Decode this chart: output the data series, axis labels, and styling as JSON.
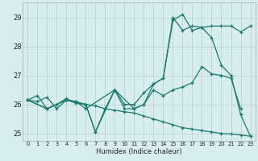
{
  "xlabel": "Humidex (Indice chaleur)",
  "background_color": "#d8eeee",
  "grid_color": "#c0d8d8",
  "line_color": "#1a7a6e",
  "xlim": [
    -0.5,
    23.5
  ],
  "ylim": [
    24.75,
    29.5
  ],
  "yticks": [
    25,
    26,
    27,
    28,
    29
  ],
  "xticks": [
    0,
    1,
    2,
    3,
    4,
    5,
    6,
    7,
    8,
    9,
    10,
    11,
    12,
    13,
    14,
    15,
    16,
    17,
    18,
    19,
    20,
    21,
    22,
    23
  ],
  "series": [
    {
      "x": [
        0,
        1,
        2,
        3,
        4,
        5,
        6,
        7,
        8,
        9,
        10,
        11,
        12,
        13,
        14,
        15,
        16,
        17,
        18,
        19,
        20,
        21,
        22,
        23
      ],
      "y": [
        26.15,
        26.1,
        26.25,
        25.85,
        26.15,
        26.05,
        26.0,
        25.95,
        25.85,
        25.8,
        25.75,
        25.7,
        25.6,
        25.5,
        25.4,
        25.3,
        25.2,
        25.15,
        25.1,
        25.05,
        25.0,
        24.98,
        24.95,
        24.9
      ]
    },
    {
      "x": [
        0,
        1,
        2,
        3,
        4,
        5,
        6,
        7,
        8,
        9,
        10,
        11,
        12,
        13,
        14,
        15,
        16,
        17,
        18,
        19,
        20,
        21,
        22
      ],
      "y": [
        26.15,
        26.3,
        25.85,
        26.0,
        26.2,
        26.05,
        26.0,
        25.05,
        25.85,
        26.5,
        25.85,
        25.85,
        26.0,
        26.5,
        26.3,
        26.5,
        26.6,
        26.75,
        27.3,
        27.05,
        27.0,
        26.9,
        25.85
      ]
    },
    {
      "x": [
        0,
        2,
        4,
        5,
        6,
        9,
        10,
        11,
        12,
        13,
        14,
        15,
        16,
        17,
        18,
        19,
        20,
        21,
        22,
        23
      ],
      "y": [
        26.15,
        25.85,
        26.15,
        26.1,
        25.85,
        26.5,
        26.0,
        26.0,
        26.4,
        26.7,
        26.9,
        28.9,
        29.1,
        28.55,
        28.65,
        28.7,
        28.7,
        28.7,
        28.5,
        28.7
      ]
    },
    {
      "x": [
        0,
        2,
        4,
        5,
        6,
        7,
        9,
        11,
        12,
        13,
        14,
        15,
        16,
        17,
        18,
        19,
        20,
        21,
        22,
        23
      ],
      "y": [
        26.15,
        25.85,
        26.15,
        26.1,
        26.0,
        25.05,
        26.5,
        25.85,
        26.0,
        26.7,
        26.9,
        29.0,
        28.55,
        28.7,
        28.65,
        28.3,
        27.35,
        27.0,
        25.65,
        24.9
      ]
    }
  ]
}
